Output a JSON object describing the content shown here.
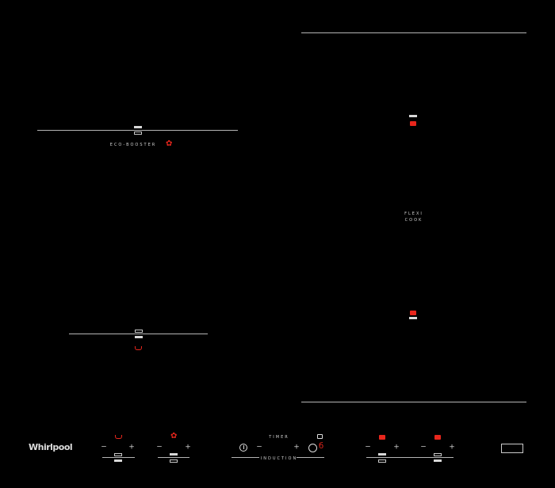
{
  "brand": {
    "logo_text": "Whirlpool"
  },
  "colors": {
    "accent": "#e8261c",
    "line": "#b5b5b5",
    "background": "#000000"
  },
  "zones": {
    "eco_booster_label": "ECO-BOOSTER",
    "flexi_line1": "FLEXI",
    "flexi_line2": "COOK"
  },
  "controls": {
    "minus": "−",
    "plus": "+",
    "timer_label": "TIMER",
    "induction_label": "INDUCTION",
    "icons": [
      "pan-icon",
      "leaf-icon",
      "power-icon",
      "lock-icon",
      "timer-icon",
      "flexi-zone-icon"
    ]
  }
}
